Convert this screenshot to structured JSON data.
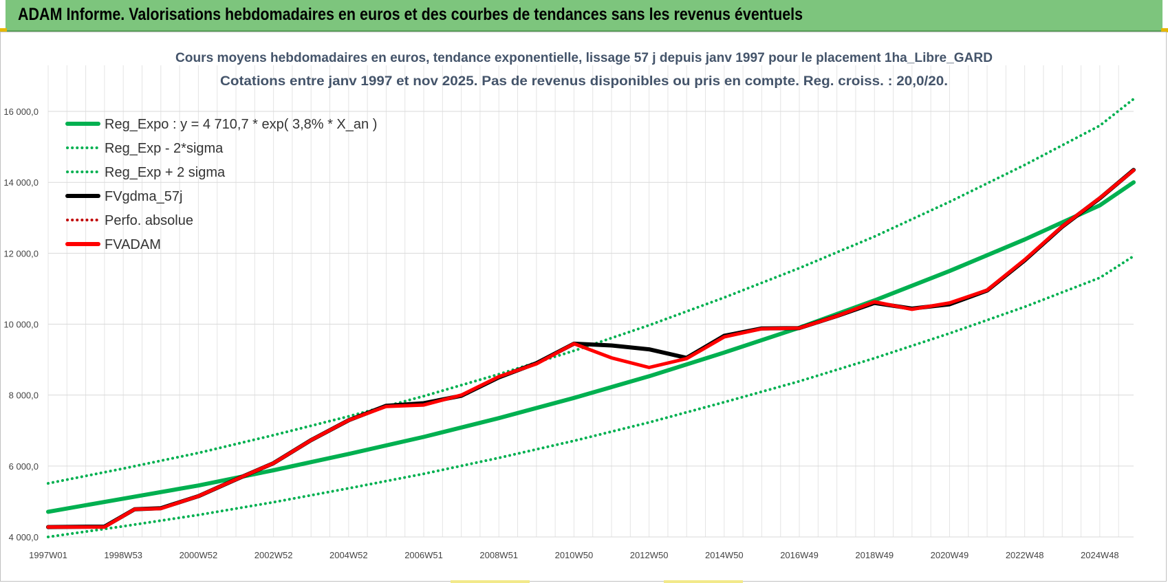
{
  "banner": {
    "title": "ADAM Informe. Valorisations hebdomadaires en euros et des courbes de tendances sans les revenus éventuels"
  },
  "colors": {
    "banner_bg": "#7dc57d",
    "trend_green": "#00b050",
    "adam_red": "#ff0000",
    "gdma_black": "#000000",
    "grid": "#d9d9d9"
  },
  "chart_data": {
    "type": "line",
    "title": "Cours moyens hebdomadaires en euros, tendance exponentielle, lissage 57 j depuis janv 1997  pour le placement 1ha_Libre_GARD",
    "subtitle": "Cotations entre janv 1997 et nov 2025. Pas de revenus disponibles ou pris en compte. Reg. croiss. : 20,0/20.",
    "xlabel": "",
    "ylabel": "",
    "x_ticks": [
      "1997W01",
      "1998W53",
      "2000W52",
      "2002W52",
      "2004W52",
      "2006W51",
      "2008W51",
      "2010W50",
      "2012W50",
      "2014W50",
      "2016W49",
      "2018W49",
      "2020W49",
      "2022W48",
      "2024W48"
    ],
    "x_tick_years": [
      1997.0,
      1999.0,
      2001.0,
      2003.0,
      2005.0,
      2007.0,
      2009.0,
      2011.0,
      2013.0,
      2015.0,
      2017.0,
      2019.0,
      2021.0,
      2023.0,
      2025.0
    ],
    "x_range": [
      1997.0,
      2025.9
    ],
    "y_ticks": [
      "4 000,0",
      "6 000,0",
      "8 000,0",
      "10 000,0",
      "12 000,0",
      "14 000,0",
      "16 000,0"
    ],
    "y_tick_values": [
      4000,
      6000,
      8000,
      10000,
      12000,
      14000,
      16000
    ],
    "ylim": [
      4000,
      17300
    ],
    "grid": true,
    "legend_position": "top-left",
    "series": [
      {
        "name": "Reg_Expo : y = 4 710,7 * exp( 3,8% *  X_an )",
        "style": "solid",
        "color": "#00b050",
        "x": [
          1997.0,
          1999.0,
          2001.0,
          2003.0,
          2005.0,
          2007.0,
          2009.0,
          2011.0,
          2013.0,
          2015.0,
          2017.0,
          2019.0,
          2021.0,
          2023.0,
          2025.0,
          2025.9
        ],
        "values": [
          4710,
          5080,
          5450,
          5880,
          6340,
          6820,
          7350,
          7920,
          8530,
          9200,
          9900,
          10670,
          11500,
          12390,
          13350,
          14000
        ]
      },
      {
        "name": "Reg_Exp - 2*sigma",
        "style": "dotted",
        "color": "#00b050",
        "x": [
          1997.0,
          1999.0,
          2001.0,
          2003.0,
          2005.0,
          2007.0,
          2009.0,
          2011.0,
          2013.0,
          2015.0,
          2017.0,
          2019.0,
          2021.0,
          2023.0,
          2025.0,
          2025.9
        ],
        "values": [
          4000,
          4300,
          4620,
          4980,
          5370,
          5780,
          6230,
          6710,
          7230,
          7800,
          8390,
          9040,
          9740,
          10490,
          11310,
          11920
        ]
      },
      {
        "name": "Reg_Exp + 2 sigma",
        "style": "dotted",
        "color": "#00b050",
        "x": [
          1997.0,
          1999.0,
          2001.0,
          2003.0,
          2005.0,
          2007.0,
          2009.0,
          2011.0,
          2013.0,
          2015.0,
          2017.0,
          2019.0,
          2021.0,
          2023.0,
          2025.0,
          2025.9
        ],
        "values": [
          5510,
          5930,
          6370,
          6870,
          7400,
          7970,
          8590,
          9250,
          9970,
          10750,
          11580,
          12470,
          13450,
          14490,
          15600,
          16350
        ]
      },
      {
        "name": "FVgdma_57j",
        "style": "solid",
        "color": "#000000",
        "x": [
          1997.0,
          1998.5,
          1999.3,
          2000.0,
          2001.0,
          2002.0,
          2003.0,
          2004.0,
          2005.0,
          2006.0,
          2007.0,
          2008.0,
          2009.0,
          2010.0,
          2011.0,
          2012.0,
          2013.0,
          2014.0,
          2015.0,
          2016.0,
          2017.0,
          2018.0,
          2019.0,
          2020.0,
          2021.0,
          2022.0,
          2023.0,
          2024.0,
          2025.0,
          2025.9
        ],
        "values": [
          4280,
          4290,
          4780,
          4810,
          5150,
          5620,
          6080,
          6730,
          7290,
          7700,
          7770,
          7980,
          8500,
          8900,
          9450,
          9400,
          9290,
          9050,
          9670,
          9880,
          9890,
          10230,
          10600,
          10440,
          10560,
          10950,
          11800,
          12750,
          13550,
          14350
        ]
      },
      {
        "name": "Perfo. absolue",
        "style": "dotted",
        "color": "#c00000",
        "x": [],
        "values": []
      },
      {
        "name": "FVADAM",
        "style": "solid",
        "color": "#ff0000",
        "x": [
          1997.0,
          1998.5,
          1999.3,
          2000.0,
          2001.0,
          2002.0,
          2003.0,
          2004.0,
          2005.0,
          2006.0,
          2007.0,
          2008.0,
          2009.0,
          2010.0,
          2011.0,
          2012.0,
          2013.0,
          2014.0,
          2015.0,
          2016.0,
          2017.0,
          2018.0,
          2019.0,
          2020.0,
          2021.0,
          2022.0,
          2023.0,
          2024.0,
          2025.0,
          2025.9
        ],
        "values": [
          4280,
          4280,
          4780,
          4800,
          5150,
          5620,
          6080,
          6730,
          7290,
          7680,
          7720,
          8000,
          8520,
          8880,
          9450,
          9050,
          8780,
          9030,
          9640,
          9870,
          9890,
          10230,
          10630,
          10420,
          10600,
          10960,
          11820,
          12760,
          13560,
          14340
        ]
      }
    ]
  }
}
